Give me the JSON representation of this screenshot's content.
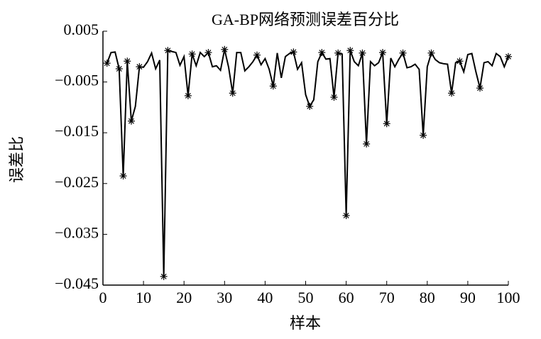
{
  "chart_data": {
    "type": "line",
    "title": "GA-BP网络预测误差百分比",
    "xlabel": "样本",
    "ylabel": "误差比",
    "x": [
      1,
      2,
      3,
      4,
      5,
      6,
      7,
      8,
      9,
      10,
      11,
      12,
      13,
      14,
      15,
      16,
      17,
      18,
      19,
      20,
      21,
      22,
      23,
      24,
      25,
      26,
      27,
      28,
      29,
      30,
      31,
      32,
      33,
      34,
      35,
      36,
      37,
      38,
      39,
      40,
      41,
      42,
      43,
      44,
      45,
      46,
      47,
      48,
      49,
      50,
      51,
      52,
      53,
      54,
      55,
      56,
      57,
      58,
      59,
      60,
      61,
      62,
      63,
      64,
      65,
      66,
      67,
      68,
      69,
      70,
      71,
      72,
      73,
      74,
      75,
      76,
      77,
      78,
      79,
      80,
      81,
      82,
      83,
      84,
      85,
      86,
      87,
      88,
      89,
      90,
      91,
      92,
      93,
      94,
      95,
      96,
      97,
      98,
      99,
      100
    ],
    "series": [
      {
        "color": "#000000",
        "marker": "none",
        "values": [
          -0.0013,
          0.0008,
          0.0009,
          -0.0024,
          -0.0235,
          -0.0009,
          -0.0127,
          -0.0098,
          -0.002,
          -0.0021,
          -0.001,
          0.0007,
          -0.0024,
          -0.0007,
          -0.0433,
          0.0012,
          0.001,
          0.0008,
          -0.0017,
          0.0,
          -0.0077,
          0.0005,
          -0.0018,
          0.0008,
          0.0,
          0.0008,
          -0.002,
          -0.0018,
          -0.0027,
          0.0014,
          -0.0021,
          -0.0072,
          0.0008,
          0.0008,
          -0.0028,
          -0.002,
          -0.001,
          0.0003,
          -0.0016,
          -0.0004,
          -0.0025,
          -0.0058,
          0.0007,
          -0.0042,
          0.0,
          0.0006,
          0.0009,
          -0.0025,
          -0.0012,
          -0.0075,
          -0.0098,
          -0.0085,
          -0.001,
          0.0008,
          -0.0005,
          -0.0004,
          -0.008,
          0.0007,
          0.0005,
          -0.0313,
          0.0012,
          -0.001,
          -0.0018,
          0.0007,
          -0.0172,
          -0.001,
          -0.0018,
          -0.0012,
          0.0008,
          -0.0132,
          -0.0003,
          -0.002,
          -0.0005,
          0.0007,
          -0.0022,
          -0.002,
          -0.0015,
          -0.0025,
          -0.0155,
          -0.002,
          0.0007,
          -0.0006,
          -0.0012,
          -0.0014,
          -0.0015,
          -0.0072,
          -0.0012,
          -0.0009,
          -0.003,
          0.0004,
          0.0006,
          -0.003,
          -0.0062,
          -0.0012,
          -0.001,
          -0.0018,
          0.0006,
          0.0,
          -0.002,
          0.0
        ]
      },
      {
        "color": "#000000",
        "marker": "*",
        "line": false,
        "x": [
          1,
          4,
          5,
          6,
          7,
          9,
          15,
          16,
          21,
          22,
          26,
          30,
          32,
          38,
          42,
          47,
          51,
          54,
          57,
          58,
          60,
          61,
          64,
          65,
          69,
          70,
          74,
          79,
          81,
          86,
          88,
          93,
          100
        ],
        "values": [
          -0.0013,
          -0.0024,
          -0.0235,
          -0.0009,
          -0.0127,
          -0.002,
          -0.0433,
          0.0012,
          -0.0077,
          0.0005,
          0.0008,
          0.0014,
          -0.0072,
          0.0003,
          -0.0058,
          0.0009,
          -0.0098,
          0.0008,
          -0.008,
          0.0007,
          -0.0313,
          0.0012,
          0.0007,
          -0.0172,
          0.0008,
          -0.0132,
          0.0007,
          -0.0155,
          0.0007,
          -0.0072,
          -0.0009,
          -0.0062,
          0.0
        ]
      }
    ],
    "xlim": [
      0,
      100
    ],
    "xticks": [
      0,
      10,
      20,
      30,
      40,
      50,
      60,
      70,
      80,
      90,
      100
    ],
    "ylim": [
      -0.045,
      0.005
    ],
    "yticks": [
      0.005,
      {
        "value": -0.005,
        "label": "−0.005"
      },
      {
        "value": -0.015,
        "label": "−0.015"
      },
      {
        "value": -0.025,
        "label": "−0.025"
      },
      {
        "value": -0.035,
        "label": "−0.035"
      },
      {
        "value": -0.045,
        "label": "−0.045"
      }
    ],
    "grid": false
  }
}
